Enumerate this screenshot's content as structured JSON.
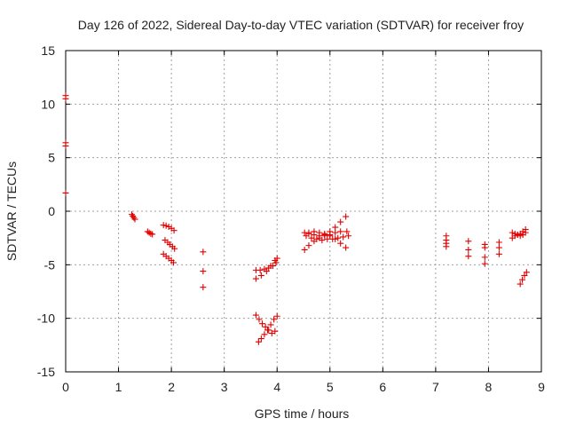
{
  "chart_data": {
    "type": "scatter",
    "title": "Day 126 of 2022, Sidereal Day-to-day VTEC variation (SDTVAR) for receiver froy",
    "xlabel": "GPS time / hours",
    "ylabel": "SDTVAR / TECUs",
    "xlim": [
      0,
      9
    ],
    "ylim": [
      -15,
      15
    ],
    "xticks": [
      "0",
      "1",
      "2",
      "3",
      "4",
      "5",
      "6",
      "7",
      "8",
      "9"
    ],
    "yticks": [
      "15",
      "10",
      "5",
      "0",
      "-5",
      "-10",
      "-15"
    ],
    "grid": true,
    "marker": "plus",
    "marker_color": "#e00000",
    "series": [
      {
        "name": "SDTVAR",
        "points": [
          [
            0.0,
            10.8
          ],
          [
            0.0,
            10.5
          ],
          [
            0.0,
            6.4
          ],
          [
            0.0,
            6.1
          ],
          [
            0.0,
            1.7
          ],
          [
            1.25,
            -0.3
          ],
          [
            1.27,
            -0.45
          ],
          [
            1.29,
            -0.6
          ],
          [
            1.31,
            -0.75
          ],
          [
            1.55,
            -1.9
          ],
          [
            1.58,
            -2.0
          ],
          [
            1.61,
            -2.1
          ],
          [
            1.64,
            -2.15
          ],
          [
            1.85,
            -1.3
          ],
          [
            1.9,
            -1.35
          ],
          [
            1.95,
            -1.45
          ],
          [
            2.0,
            -1.6
          ],
          [
            2.05,
            -1.8
          ],
          [
            1.88,
            -2.7
          ],
          [
            1.93,
            -2.9
          ],
          [
            1.97,
            -3.1
          ],
          [
            2.02,
            -3.3
          ],
          [
            2.06,
            -3.5
          ],
          [
            1.85,
            -4.0
          ],
          [
            1.9,
            -4.2
          ],
          [
            1.95,
            -4.4
          ],
          [
            2.0,
            -4.6
          ],
          [
            2.04,
            -4.8
          ],
          [
            2.6,
            -3.8
          ],
          [
            2.6,
            -5.6
          ],
          [
            2.6,
            -7.1
          ],
          [
            3.6,
            -5.5
          ],
          [
            3.68,
            -5.5
          ],
          [
            3.76,
            -5.4
          ],
          [
            3.84,
            -5.3
          ],
          [
            3.92,
            -5.1
          ],
          [
            3.98,
            -4.8
          ],
          [
            3.6,
            -6.3
          ],
          [
            3.7,
            -6.0
          ],
          [
            3.8,
            -5.6
          ],
          [
            3.88,
            -5.1
          ],
          [
            3.96,
            -4.6
          ],
          [
            4.0,
            -4.4
          ],
          [
            3.6,
            -9.7
          ],
          [
            3.66,
            -10.1
          ],
          [
            3.72,
            -10.5
          ],
          [
            3.78,
            -10.8
          ],
          [
            3.84,
            -11.1
          ],
          [
            3.9,
            -11.4
          ],
          [
            3.96,
            -11.2
          ],
          [
            3.65,
            -12.2
          ],
          [
            3.7,
            -11.9
          ],
          [
            3.76,
            -11.5
          ],
          [
            3.82,
            -11.1
          ],
          [
            3.88,
            -10.6
          ],
          [
            3.94,
            -10.1
          ],
          [
            4.0,
            -9.8
          ],
          [
            4.52,
            -3.6
          ],
          [
            4.6,
            -3.2
          ],
          [
            4.7,
            -2.8
          ],
          [
            4.8,
            -2.5
          ],
          [
            4.9,
            -2.2
          ],
          [
            5.0,
            -1.9
          ],
          [
            5.1,
            -1.5
          ],
          [
            5.2,
            -1.0
          ],
          [
            5.3,
            -0.5
          ],
          [
            4.52,
            -2.0
          ],
          [
            4.6,
            -2.1
          ],
          [
            4.7,
            -2.2
          ],
          [
            4.8,
            -2.3
          ],
          [
            4.9,
            -2.3
          ],
          [
            5.0,
            -2.2
          ],
          [
            5.1,
            -2.0
          ],
          [
            5.2,
            -1.9
          ],
          [
            5.32,
            -1.9
          ],
          [
            4.55,
            -2.3
          ],
          [
            4.65,
            -2.5
          ],
          [
            4.75,
            -2.6
          ],
          [
            4.85,
            -2.7
          ],
          [
            4.95,
            -2.6
          ],
          [
            5.05,
            -2.6
          ],
          [
            5.15,
            -2.5
          ],
          [
            5.25,
            -2.4
          ],
          [
            5.35,
            -2.3
          ],
          [
            4.6,
            -2.0
          ],
          [
            4.7,
            -1.9
          ],
          [
            4.8,
            -2.0
          ],
          [
            4.9,
            -2.1
          ],
          [
            5.0,
            -2.3
          ],
          [
            5.1,
            -2.6
          ],
          [
            5.2,
            -3.0
          ],
          [
            5.3,
            -3.4
          ],
          [
            7.2,
            -2.3
          ],
          [
            7.2,
            -2.7
          ],
          [
            7.2,
            -3.0
          ],
          [
            7.2,
            -3.3
          ],
          [
            7.62,
            -2.8
          ],
          [
            7.62,
            -3.6
          ],
          [
            7.62,
            -4.2
          ],
          [
            7.93,
            -3.1
          ],
          [
            7.93,
            -3.4
          ],
          [
            7.93,
            -4.3
          ],
          [
            7.93,
            -4.9
          ],
          [
            8.2,
            -2.9
          ],
          [
            8.2,
            -3.4
          ],
          [
            8.2,
            -4.0
          ],
          [
            8.45,
            -2.5
          ],
          [
            8.5,
            -2.3
          ],
          [
            8.55,
            -2.2
          ],
          [
            8.6,
            -2.1
          ],
          [
            8.65,
            -1.9
          ],
          [
            8.7,
            -1.7
          ],
          [
            8.45,
            -2.0
          ],
          [
            8.5,
            -2.1
          ],
          [
            8.55,
            -2.2
          ],
          [
            8.6,
            -2.3
          ],
          [
            8.65,
            -2.2
          ],
          [
            8.7,
            -2.0
          ],
          [
            8.6,
            -6.8
          ],
          [
            8.64,
            -6.4
          ],
          [
            8.68,
            -6.0
          ],
          [
            8.72,
            -5.7
          ]
        ]
      }
    ]
  }
}
